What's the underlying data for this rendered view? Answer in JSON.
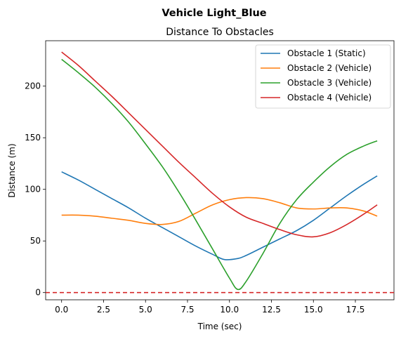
{
  "suptitle": "Vehicle Light_Blue",
  "chart_data": {
    "type": "line",
    "title": "Distance To Obstacles",
    "xlabel": "Time (sec)",
    "ylabel": "Distance (m)",
    "xlim": [
      -0.95,
      19.8
    ],
    "ylim": [
      -7,
      244
    ],
    "xticks": [
      0.0,
      2.5,
      5.0,
      7.5,
      10.0,
      12.5,
      15.0,
      17.5
    ],
    "xtick_labels": [
      "0.0",
      "2.5",
      "5.0",
      "7.5",
      "10.0",
      "12.5",
      "15.0",
      "17.5"
    ],
    "yticks": [
      0,
      50,
      100,
      150,
      200
    ],
    "ytick_labels": [
      "0",
      "50",
      "100",
      "150",
      "200"
    ],
    "grid": false,
    "legend_position": "top-right",
    "threshold_line": {
      "y": 0,
      "color": "#d62728",
      "style": "dashed"
    },
    "series": [
      {
        "name": "Obstacle 1 (Static)",
        "color": "#1f77b4",
        "x": [
          0,
          1,
          2,
          3,
          4,
          5,
          6,
          7,
          8,
          9,
          9.7,
          10.5,
          11,
          12,
          13,
          14,
          15,
          16,
          17,
          18,
          18.8
        ],
        "y": [
          117,
          109,
          100,
          91,
          82,
          72,
          63,
          54,
          45,
          37,
          32,
          33,
          36,
          44,
          52,
          60,
          70,
          82,
          94,
          105,
          113
        ]
      },
      {
        "name": "Obstacle 2 (Vehicle)",
        "color": "#ff7f0e",
        "x": [
          0,
          1,
          2,
          3,
          4,
          5,
          6,
          7,
          8,
          9,
          10,
          11,
          12,
          13,
          14,
          15,
          16,
          17,
          18,
          18.8
        ],
        "y": [
          75,
          75,
          74,
          72,
          70,
          67,
          66,
          69,
          77,
          85,
          90,
          92,
          91,
          87,
          82,
          81,
          82,
          82,
          79,
          74
        ]
      },
      {
        "name": "Obstacle 3 (Vehicle)",
        "color": "#2ca02c",
        "x": [
          0,
          1,
          2,
          3,
          4,
          5,
          6,
          7,
          8,
          9,
          10,
          10.5,
          11,
          12,
          13,
          14,
          15,
          16,
          17,
          18,
          18.8
        ],
        "y": [
          226,
          213,
          199,
          183,
          165,
          144,
          122,
          97,
          70,
          42,
          14,
          3,
          11,
          38,
          67,
          90,
          107,
          122,
          134,
          142,
          147
        ]
      },
      {
        "name": "Obstacle 4 (Vehicle)",
        "color": "#d62728",
        "x": [
          0,
          1,
          2,
          3,
          4,
          5,
          6,
          7,
          8,
          9,
          10,
          11,
          12,
          13,
          14,
          15,
          16,
          17,
          18,
          18.8
        ],
        "y": [
          233,
          220,
          205,
          190,
          174,
          158,
          142,
          126,
          111,
          96,
          83,
          73,
          67,
          61,
          56,
          54,
          58,
          66,
          76,
          85
        ]
      }
    ]
  }
}
